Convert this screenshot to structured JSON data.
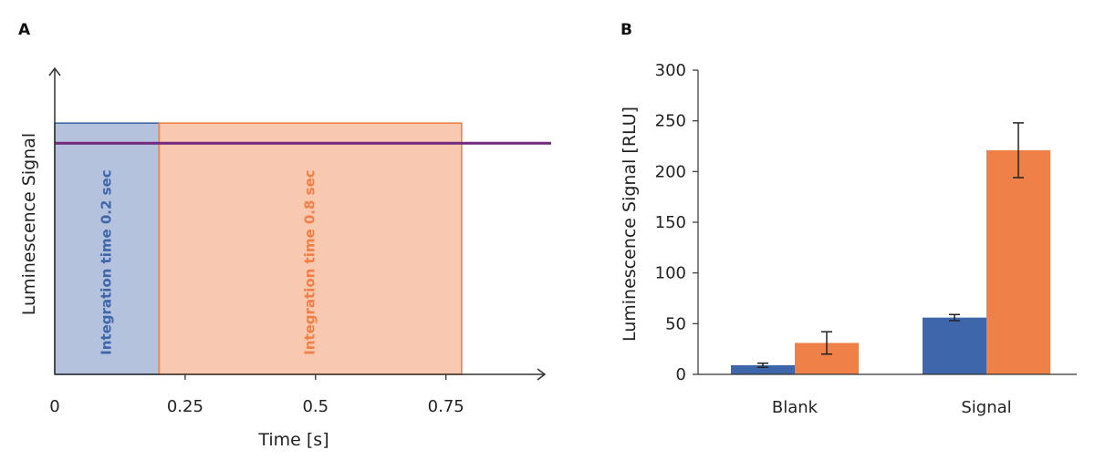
{
  "colors": {
    "blue": "#3e67ab",
    "blue_fill": "#b4c2de",
    "orange": "#ef8047",
    "orange_fill": "#f9c8b0",
    "purple": "#72297e",
    "axis": "#333333"
  },
  "chart_data": [
    {
      "type": "area",
      "panel_label": "A",
      "xlabel": "Time [s]",
      "ylabel": "Luminescence Signal",
      "xlim": [
        0,
        0.95
      ],
      "ylim": [
        0,
        1.2
      ],
      "x_ticks": [
        {
          "value": 0,
          "label": "0"
        },
        {
          "value": 0.25,
          "label": "0.25"
        },
        {
          "value": 0.5,
          "label": "0.5"
        },
        {
          "value": 0.75,
          "label": "0.75"
        }
      ],
      "windows": [
        {
          "label": "Integration time 0.2 sec",
          "x_start": 0,
          "x_end": 0.2,
          "height": 1.0,
          "color": "blue"
        },
        {
          "label": "Integration time 0.8 sec",
          "x_start": 0.2,
          "x_end": 0.78,
          "height": 1.0,
          "color": "orange"
        }
      ],
      "signal_level": 0.92,
      "grid": false
    },
    {
      "type": "bar",
      "panel_label": "B",
      "categories": [
        "Blank",
        "Signal"
      ],
      "ylabel": "Luminescence Signal [RLU]",
      "xlabel": "",
      "ylim": [
        0,
        300
      ],
      "y_ticks": [
        0,
        50,
        100,
        150,
        200,
        250,
        300
      ],
      "series": [
        {
          "color": "blue",
          "values": [
            9,
            56
          ],
          "errors": [
            2,
            3
          ]
        },
        {
          "color": "orange",
          "values": [
            31,
            221
          ],
          "errors": [
            11,
            27
          ]
        }
      ],
      "grid": false
    }
  ]
}
